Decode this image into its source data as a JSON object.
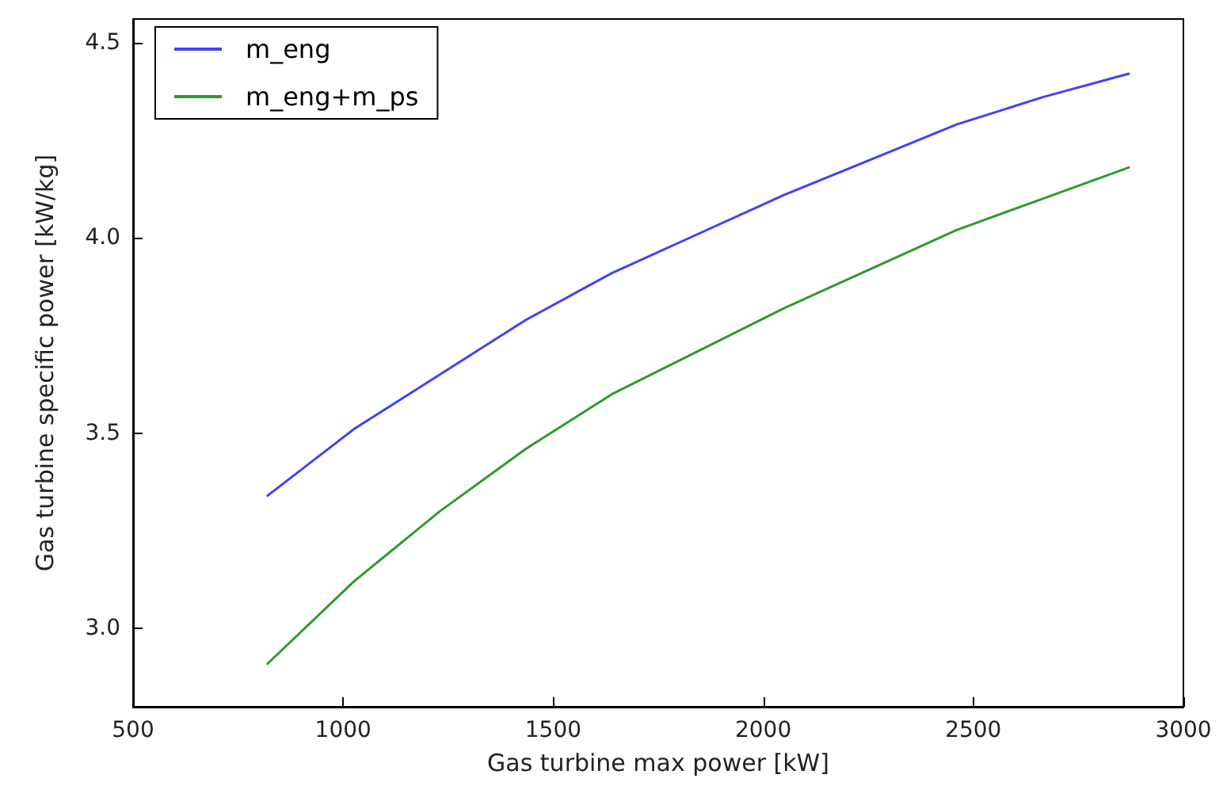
{
  "chart_data": {
    "type": "line",
    "xlabel": "Gas turbine max power [kW]",
    "ylabel": "Gas turbine specific power [kW/kg]",
    "x": [
      820,
      1025,
      1230,
      1435,
      1640,
      1845,
      2050,
      2255,
      2460,
      2665,
      2870
    ],
    "series": [
      {
        "name": "m_eng",
        "color": "#4040ff",
        "values": [
          3.34,
          3.51,
          3.65,
          3.79,
          3.91,
          4.01,
          4.11,
          4.2,
          4.29,
          4.36,
          4.42
        ]
      },
      {
        "name": "m_eng+m_ps",
        "color": "#2e9a2e",
        "values": [
          2.91,
          3.12,
          3.3,
          3.46,
          3.6,
          3.71,
          3.82,
          3.92,
          4.02,
          4.1,
          4.18
        ]
      }
    ],
    "xlim": [
      500,
      3000
    ],
    "xticks": [
      500,
      1000,
      1500,
      2000,
      2500,
      3000
    ],
    "ylim": [
      2.8,
      4.56
    ],
    "yticks": [
      {
        "value": 3,
        "label": "3.0"
      },
      3.5,
      {
        "value": 4,
        "label": "4.0"
      },
      4.5
    ],
    "grid": false,
    "legend": "top left",
    "marker": "none",
    "line_style": "solid"
  }
}
